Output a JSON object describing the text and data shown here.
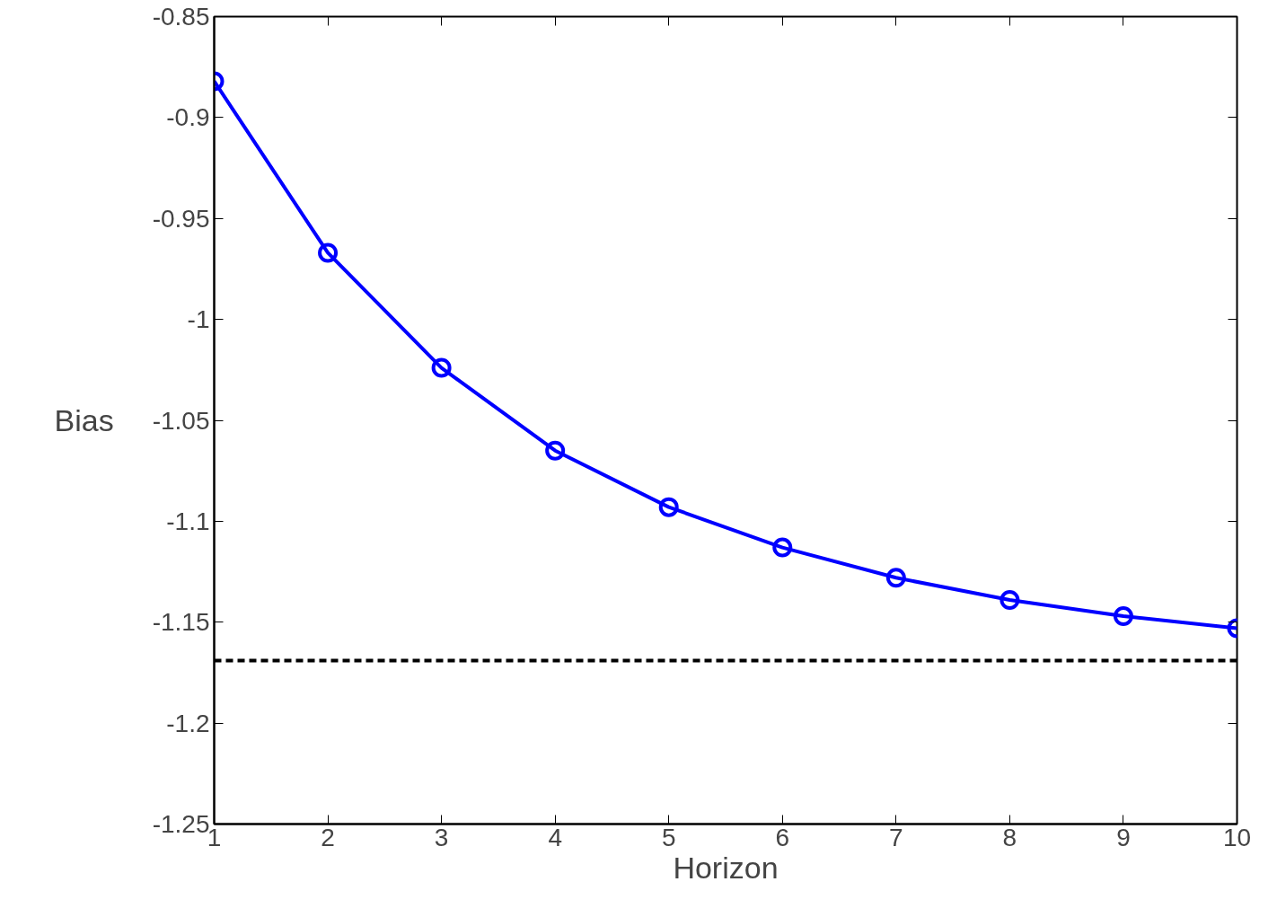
{
  "chart_data": {
    "type": "line",
    "xlabel": "Horizon",
    "ylabel": "Bias",
    "x": [
      1,
      2,
      3,
      4,
      5,
      6,
      7,
      8,
      9,
      10
    ],
    "series": [
      {
        "color": "#0000ff",
        "values": [
          -0.882,
          -0.967,
          -1.024,
          -1.065,
          -1.093,
          -1.113,
          -1.128,
          -1.139,
          -1.147,
          -1.153
        ]
      }
    ],
    "xlim": [
      1,
      10
    ],
    "xticks": [
      1,
      2,
      3,
      4,
      5,
      6,
      7,
      8,
      9,
      10
    ],
    "ylim": [
      -1.25,
      -0.85
    ],
    "yticks": [
      {
        "value": -1.25,
        "label": "-1.25"
      },
      {
        "value": -1.2,
        "label": "-1.2"
      },
      {
        "value": -1.15,
        "label": "-1.15"
      },
      {
        "value": -1.1,
        "label": "-1.1"
      },
      {
        "value": -1.05,
        "label": "-1.05"
      },
      {
        "value": -1.0,
        "label": "-1"
      },
      {
        "value": -0.95,
        "label": "-0.95"
      },
      {
        "value": -0.9,
        "label": "-0.9"
      },
      {
        "value": -0.85,
        "label": "-0.85"
      }
    ],
    "ref_lines": [
      {
        "axis": "y",
        "value": -1.169,
        "color": "#000000",
        "line_style": "dashed"
      }
    ],
    "grid": false,
    "marker": "circle",
    "line_style": "solid"
  }
}
